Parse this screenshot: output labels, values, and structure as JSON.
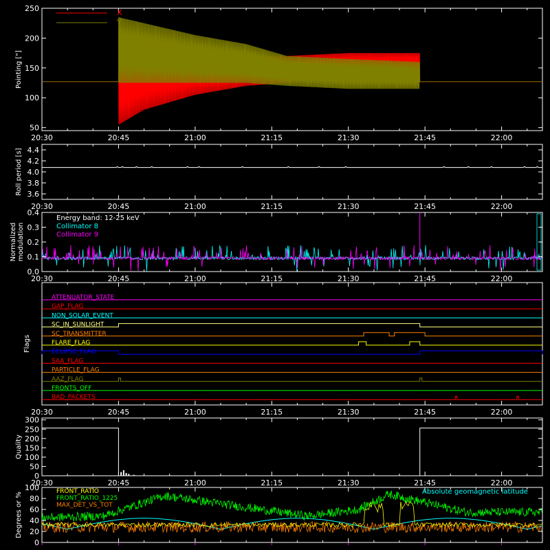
{
  "time_axis": {
    "ticks": [
      "20:30",
      "20:45",
      "21:00",
      "21:15",
      "21:30",
      "21:45",
      "22:00"
    ],
    "range_minutes": [
      0,
      98
    ]
  },
  "colors": {
    "background": "#000000",
    "axes": "#ffffff",
    "x_series": "#ff0000",
    "y_series": "#808000",
    "cyan": "#00ffff",
    "magenta": "#ff00ff",
    "green": "#00ff00",
    "orange": "#ff8000",
    "yellow": "#ffff00",
    "blue": "#0000ff"
  },
  "chart_data": [
    {
      "id": "pointing",
      "type": "line",
      "ylabel": "Pointing [\"]",
      "ylim": [
        45,
        250
      ],
      "yticks": [
        "50",
        "100",
        "150",
        "200",
        "250"
      ],
      "legend": {
        "placement": "top-left",
        "entries": [
          "X",
          "Y"
        ]
      },
      "series": [
        {
          "name": "X",
          "baseline": 127,
          "active_start": 15,
          "active_end": 74,
          "envelope": [
            [
              15,
              55,
              195
            ],
            [
              20,
              80,
              200
            ],
            [
              30,
              105,
              185
            ],
            [
              40,
              120,
              170
            ],
            [
              48,
              125,
              170
            ],
            [
              60,
              135,
              175
            ],
            [
              74,
              140,
              175
            ]
          ]
        },
        {
          "name": "Y",
          "baseline": 127,
          "active_start": 15,
          "active_end": 74,
          "envelope": [
            [
              15,
              125,
              235
            ],
            [
              20,
              125,
              225
            ],
            [
              30,
              125,
              205
            ],
            [
              40,
              125,
              190
            ],
            [
              48,
              120,
              170
            ],
            [
              60,
              115,
              165
            ],
            [
              74,
              115,
              160
            ]
          ]
        }
      ]
    },
    {
      "id": "roll_period",
      "type": "line",
      "ylabel": "Roll period [s]",
      "ylim": [
        3.5,
        4.5
      ],
      "yticks": [
        "3.6",
        "3.8",
        "4.0",
        "4.2",
        "4.4"
      ],
      "series": [
        {
          "value": 4.08
        }
      ]
    },
    {
      "id": "modulation",
      "type": "line",
      "ylabel": [
        "Normalized",
        "modulation"
      ],
      "ylim": [
        0,
        0.4
      ],
      "yticks": [
        "0.0",
        "0.1",
        "0.2",
        "0.3",
        "0.4"
      ],
      "legend_title": "Energy band: 12-25 keV",
      "series": [
        {
          "name": "Collimator 8",
          "baseline": 0.09
        },
        {
          "name": "Collimator 9",
          "baseline": 0.09
        }
      ],
      "spike": {
        "x": 74,
        "y": 0.4
      }
    },
    {
      "id": "flags",
      "type": "line",
      "ylabel": "Flags",
      "rows": [
        {
          "name": "ATTENUATOR_STATE",
          "color": "#ff00ff",
          "pulses": []
        },
        {
          "name": "GAP_FLAG",
          "color": "#ff0000",
          "pulses": []
        },
        {
          "name": "NON_SOLAR_EVENT",
          "color": "#00ffff",
          "pulses": []
        },
        {
          "name": "SC_IN_SUNLIGHT",
          "color": "#ffff80",
          "pulses": [
            [
              15,
              74
            ]
          ]
        },
        {
          "name": "SC_TRANSMITTER",
          "color": "#ff8000",
          "pulses": [
            [
              63,
              68
            ],
            [
              69,
              75
            ]
          ]
        },
        {
          "name": "FLARE_FLAG",
          "color": "#ffff00",
          "pulses": [
            [
              62,
              63.5
            ],
            [
              72,
              74
            ]
          ]
        },
        {
          "name": "ECLIPSE_FLAG",
          "color": "#0000ff",
          "pulses": [
            [
              0,
              15
            ],
            [
              74,
              98
            ]
          ]
        },
        {
          "name": "SAA_FLAG",
          "color": "#ff0000",
          "pulses": []
        },
        {
          "name": "PARTICLE_FLAG",
          "color": "#ff8000",
          "pulses": []
        },
        {
          "name": "AAZ_FLAG",
          "color": "#808000",
          "pulses": [
            [
              15,
              15.4
            ],
            [
              74,
              74.4
            ]
          ]
        },
        {
          "name": "FRONTS_OFF",
          "color": "#00ff00",
          "pulses": []
        },
        {
          "name": "BAD_PACKETS",
          "color": "#ff0000",
          "pulses": [
            [
              81,
              81.3
            ],
            [
              93,
              93.3
            ]
          ]
        }
      ]
    },
    {
      "id": "quality",
      "type": "line",
      "ylabel": "Quality",
      "ylim": [
        0,
        310
      ],
      "yticks": [
        "0",
        "50",
        "100",
        "150",
        "200",
        "250",
        "300"
      ],
      "series": [
        {
          "points": [
            [
              0,
              256
            ],
            [
              15,
              256
            ],
            [
              15,
              0
            ],
            [
              74,
              0
            ],
            [
              74,
              256
            ],
            [
              98,
              256
            ]
          ]
        }
      ],
      "bumps": [
        [
          15.5,
          20
        ],
        [
          16,
          30
        ],
        [
          16.5,
          15
        ],
        [
          17,
          10
        ],
        [
          18,
          5
        ]
      ]
    },
    {
      "id": "ratios",
      "type": "line",
      "ylabel": "Degrees or %",
      "ylim": [
        0,
        100
      ],
      "yticks": [
        "0",
        "20",
        "40",
        "60",
        "80",
        "100"
      ],
      "series": [
        {
          "name": "FRONT_RATIO",
          "color": "#ffff00"
        },
        {
          "name": "FRONT_RATIO_1225",
          "color": "#00ff00"
        },
        {
          "name": "MAX_DET_VS_TOT",
          "color": "#ff8000"
        },
        {
          "name": "Absolute geomagnetic latitude",
          "color": "#00ffff"
        }
      ],
      "green_levels": [
        [
          0,
          45
        ],
        [
          12,
          48
        ],
        [
          24,
          85
        ],
        [
          52,
          48
        ],
        [
          62,
          60
        ],
        [
          68,
          88
        ],
        [
          83,
          55
        ],
        [
          98,
          55
        ]
      ]
    }
  ]
}
